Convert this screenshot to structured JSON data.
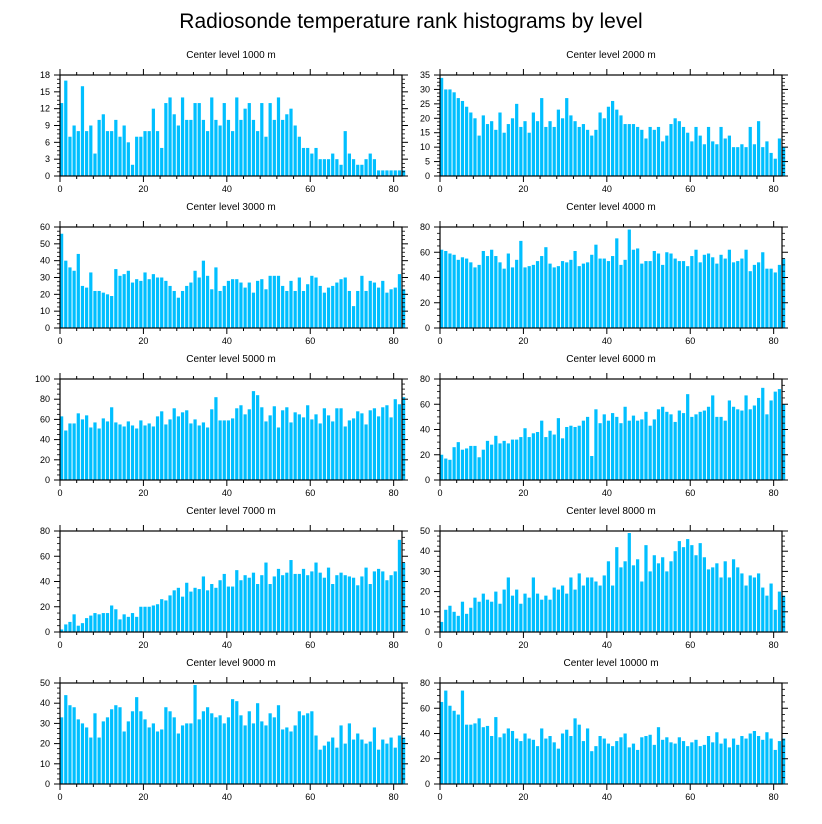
{
  "figure": {
    "title": "Radiosonde temperature rank histograms by level",
    "bar_color": "#00BFFF"
  },
  "chart_data": [
    {
      "type": "bar",
      "title": "Center level 1000 m",
      "xlabel": "",
      "ylabel": "",
      "xlim": [
        0,
        82
      ],
      "ylim": [
        0,
        18
      ],
      "xticks": [
        0,
        20,
        40,
        60,
        80
      ],
      "yticks": [
        0,
        3,
        6,
        9,
        12,
        15,
        18
      ],
      "values": [
        13,
        17,
        7,
        9,
        8,
        16,
        8,
        9,
        4,
        10,
        11,
        8,
        8,
        10,
        7,
        9,
        6,
        2,
        7,
        7,
        8,
        8,
        12,
        8,
        5,
        13,
        14,
        11,
        9,
        14,
        10,
        10,
        13,
        13,
        10,
        8,
        14,
        10,
        9,
        13,
        10,
        8,
        14,
        10,
        12,
        13,
        10,
        8,
        13,
        7,
        13,
        10,
        14,
        10,
        11,
        12,
        9,
        7,
        5,
        5,
        4,
        5,
        3,
        3,
        3,
        4,
        3,
        2,
        8,
        4,
        3,
        2,
        2,
        3,
        4,
        3,
        1,
        1,
        1,
        1,
        1,
        1,
        1
      ]
    },
    {
      "type": "bar",
      "title": "Center level 2000 m",
      "xlabel": "",
      "ylabel": "",
      "xlim": [
        0,
        82
      ],
      "ylim": [
        0,
        35
      ],
      "xticks": [
        0,
        20,
        40,
        60,
        80
      ],
      "yticks": [
        0,
        5,
        10,
        15,
        20,
        25,
        30,
        35
      ],
      "values": [
        34,
        30,
        30,
        29,
        27,
        26,
        24,
        22,
        20,
        14,
        21,
        18,
        19,
        16,
        22,
        15,
        18,
        20,
        25,
        17,
        19,
        15,
        22,
        19,
        27,
        17,
        19,
        17,
        23,
        20,
        27,
        21,
        19,
        17,
        18,
        16,
        14,
        16,
        22,
        20,
        24,
        26,
        23,
        21,
        18,
        18,
        18,
        17,
        16,
        13,
        17,
        16,
        17,
        12,
        14,
        18,
        20,
        19,
        17,
        15,
        12,
        17,
        14,
        11,
        17,
        12,
        11,
        17,
        13,
        14,
        10,
        10,
        11,
        10,
        17,
        11,
        19,
        10,
        12,
        8,
        6,
        13,
        10
      ]
    },
    {
      "type": "bar",
      "title": "Center level 3000 m",
      "xlabel": "",
      "ylabel": "",
      "xlim": [
        0,
        82
      ],
      "ylim": [
        0,
        60
      ],
      "xticks": [
        0,
        20,
        40,
        60,
        80
      ],
      "yticks": [
        0,
        10,
        20,
        30,
        40,
        50,
        60
      ],
      "values": [
        56,
        40,
        36,
        34,
        44,
        25,
        24,
        33,
        22,
        22,
        21,
        20,
        19,
        35,
        31,
        32,
        34,
        27,
        29,
        28,
        33,
        29,
        32,
        30,
        30,
        28,
        25,
        22,
        18,
        22,
        25,
        27,
        34,
        30,
        40,
        31,
        23,
        36,
        22,
        25,
        28,
        29,
        29,
        27,
        24,
        27,
        21,
        28,
        29,
        23,
        31,
        31,
        31,
        25,
        22,
        28,
        22,
        30,
        22,
        26,
        31,
        30,
        25,
        21,
        24,
        25,
        27,
        29,
        30,
        22,
        13,
        22,
        31,
        22,
        28,
        27,
        24,
        28,
        21,
        23,
        24,
        32,
        23
      ]
    },
    {
      "type": "bar",
      "title": "Center level 4000 m",
      "xlabel": "",
      "ylabel": "",
      "xlim": [
        0,
        82
      ],
      "ylim": [
        0,
        80
      ],
      "xticks": [
        0,
        20,
        40,
        60,
        80
      ],
      "yticks": [
        0,
        20,
        40,
        60,
        80
      ],
      "values": [
        62,
        61,
        59,
        58,
        54,
        56,
        55,
        52,
        48,
        50,
        61,
        57,
        62,
        57,
        52,
        47,
        59,
        48,
        54,
        69,
        48,
        49,
        50,
        53,
        57,
        64,
        51,
        48,
        49,
        53,
        52,
        54,
        61,
        49,
        51,
        52,
        58,
        66,
        55,
        55,
        53,
        57,
        71,
        50,
        54,
        78,
        62,
        63,
        51,
        53,
        53,
        61,
        59,
        50,
        60,
        59,
        55,
        53,
        53,
        49,
        57,
        62,
        52,
        58,
        59,
        56,
        51,
        58,
        55,
        62,
        52,
        53,
        55,
        62,
        45,
        50,
        52,
        60,
        47,
        47,
        44,
        50,
        55
      ]
    },
    {
      "type": "bar",
      "title": "Center level 5000 m",
      "xlabel": "",
      "ylabel": "",
      "xlim": [
        0,
        82
      ],
      "ylim": [
        0,
        100
      ],
      "xticks": [
        0,
        20,
        40,
        60,
        80
      ],
      "yticks": [
        0,
        20,
        40,
        60,
        80,
        100
      ],
      "values": [
        63,
        49,
        56,
        56,
        66,
        60,
        64,
        52,
        57,
        51,
        61,
        58,
        72,
        57,
        55,
        53,
        58,
        54,
        51,
        59,
        54,
        56,
        53,
        63,
        68,
        55,
        60,
        71,
        63,
        67,
        69,
        56,
        60,
        54,
        57,
        52,
        70,
        82,
        59,
        59,
        59,
        61,
        71,
        74,
        65,
        70,
        88,
        84,
        72,
        58,
        64,
        73,
        52,
        69,
        72,
        57,
        67,
        65,
        62,
        74,
        60,
        65,
        56,
        71,
        64,
        58,
        71,
        71,
        53,
        59,
        61,
        68,
        66,
        55,
        69,
        71,
        63,
        72,
        74,
        62,
        80,
        75,
        82
      ]
    },
    {
      "type": "bar",
      "title": "Center level 6000 m",
      "xlabel": "",
      "ylabel": "",
      "xlim": [
        0,
        82
      ],
      "ylim": [
        0,
        80
      ],
      "xticks": [
        0,
        20,
        40,
        60,
        80
      ],
      "yticks": [
        0,
        20,
        40,
        60,
        80
      ],
      "values": [
        20,
        17,
        16,
        26,
        30,
        24,
        25,
        27,
        27,
        18,
        24,
        31,
        28,
        35,
        29,
        31,
        29,
        32,
        32,
        34,
        41,
        34,
        37,
        38,
        47,
        34,
        39,
        36,
        49,
        33,
        42,
        43,
        42,
        43,
        47,
        50,
        19,
        56,
        45,
        52,
        47,
        53,
        50,
        45,
        58,
        47,
        51,
        47,
        48,
        54,
        43,
        48,
        56,
        58,
        54,
        52,
        46,
        55,
        53,
        68,
        50,
        52,
        54,
        55,
        58,
        67,
        50,
        50,
        47,
        63,
        58,
        56,
        55,
        67,
        56,
        59,
        65,
        73,
        52,
        63,
        70,
        72,
        60
      ]
    },
    {
      "type": "bar",
      "title": "Center level 7000 m",
      "xlabel": "",
      "ylabel": "",
      "xlim": [
        0,
        82
      ],
      "ylim": [
        0,
        80
      ],
      "xticks": [
        0,
        20,
        40,
        60,
        80
      ],
      "yticks": [
        0,
        20,
        40,
        60,
        80
      ],
      "values": [
        2,
        6,
        8,
        14,
        5,
        7,
        11,
        13,
        15,
        14,
        15,
        15,
        21,
        18,
        10,
        14,
        12,
        15,
        12,
        20,
        20,
        20,
        21,
        22,
        26,
        25,
        29,
        33,
        35,
        28,
        39,
        32,
        35,
        34,
        44,
        33,
        38,
        35,
        41,
        46,
        36,
        36,
        49,
        41,
        45,
        43,
        47,
        38,
        45,
        55,
        38,
        44,
        50,
        45,
        47,
        57,
        46,
        46,
        50,
        45,
        48,
        55,
        47,
        43,
        51,
        38,
        45,
        47,
        45,
        44,
        43,
        37,
        44,
        51,
        38,
        48,
        50,
        48,
        41,
        45,
        48,
        73,
        55
      ]
    },
    {
      "type": "bar",
      "title": "Center level 8000 m",
      "xlabel": "",
      "ylabel": "",
      "xlim": [
        0,
        82
      ],
      "ylim": [
        0,
        50
      ],
      "xticks": [
        0,
        20,
        40,
        60,
        80
      ],
      "yticks": [
        0,
        10,
        20,
        30,
        40,
        50
      ],
      "values": [
        5,
        11,
        13,
        10,
        8,
        15,
        9,
        12,
        17,
        15,
        19,
        16,
        15,
        20,
        14,
        21,
        27,
        18,
        21,
        14,
        19,
        17,
        27,
        19,
        16,
        18,
        16,
        22,
        21,
        23,
        19,
        27,
        21,
        29,
        23,
        27,
        27,
        25,
        23,
        28,
        35,
        23,
        42,
        32,
        35,
        49,
        33,
        36,
        25,
        43,
        30,
        38,
        34,
        37,
        30,
        35,
        40,
        45,
        42,
        46,
        43,
        38,
        44,
        37,
        31,
        32,
        34,
        27,
        35,
        27,
        36,
        32,
        29,
        23,
        28,
        27,
        29,
        22,
        18,
        24,
        11,
        20,
        18
      ]
    },
    {
      "type": "bar",
      "title": "Center level 9000 m",
      "xlabel": "",
      "ylabel": "",
      "xlim": [
        0,
        82
      ],
      "ylim": [
        0,
        50
      ],
      "xticks": [
        0,
        20,
        40,
        60,
        80
      ],
      "yticks": [
        0,
        10,
        20,
        30,
        40,
        50
      ],
      "values": [
        33,
        44,
        39,
        38,
        32,
        30,
        28,
        23,
        35,
        23,
        31,
        33,
        37,
        39,
        38,
        26,
        31,
        36,
        43,
        36,
        32,
        28,
        30,
        26,
        27,
        38,
        36,
        33,
        25,
        29,
        30,
        30,
        49,
        32,
        36,
        38,
        35,
        33,
        34,
        30,
        33,
        42,
        41,
        34,
        29,
        36,
        30,
        40,
        31,
        29,
        35,
        33,
        39,
        27,
        28,
        26,
        29,
        36,
        34,
        35,
        36,
        24,
        17,
        19,
        21,
        23,
        18,
        29,
        20,
        30,
        22,
        25,
        22,
        20,
        21,
        28,
        17,
        22,
        20,
        23,
        18,
        24,
        23
      ]
    },
    {
      "type": "bar",
      "title": "Center level 10000 m",
      "xlabel": "",
      "ylabel": "",
      "xlim": [
        0,
        82
      ],
      "ylim": [
        0,
        80
      ],
      "xticks": [
        0,
        20,
        40,
        60,
        80
      ],
      "yticks": [
        0,
        20,
        40,
        60,
        80
      ],
      "values": [
        65,
        74,
        62,
        58,
        55,
        74,
        47,
        47,
        48,
        52,
        45,
        46,
        38,
        53,
        37,
        40,
        44,
        42,
        36,
        34,
        40,
        36,
        35,
        30,
        44,
        36,
        38,
        33,
        28,
        40,
        43,
        38,
        52,
        47,
        34,
        44,
        26,
        30,
        38,
        36,
        32,
        30,
        34,
        37,
        40,
        29,
        32,
        27,
        37,
        38,
        39,
        31,
        45,
        35,
        37,
        33,
        32,
        37,
        34,
        30,
        33,
        35,
        30,
        31,
        38,
        33,
        41,
        32,
        36,
        29,
        36,
        31,
        38,
        36,
        40,
        42,
        38,
        35,
        41,
        36,
        27,
        34,
        36
      ]
    }
  ]
}
